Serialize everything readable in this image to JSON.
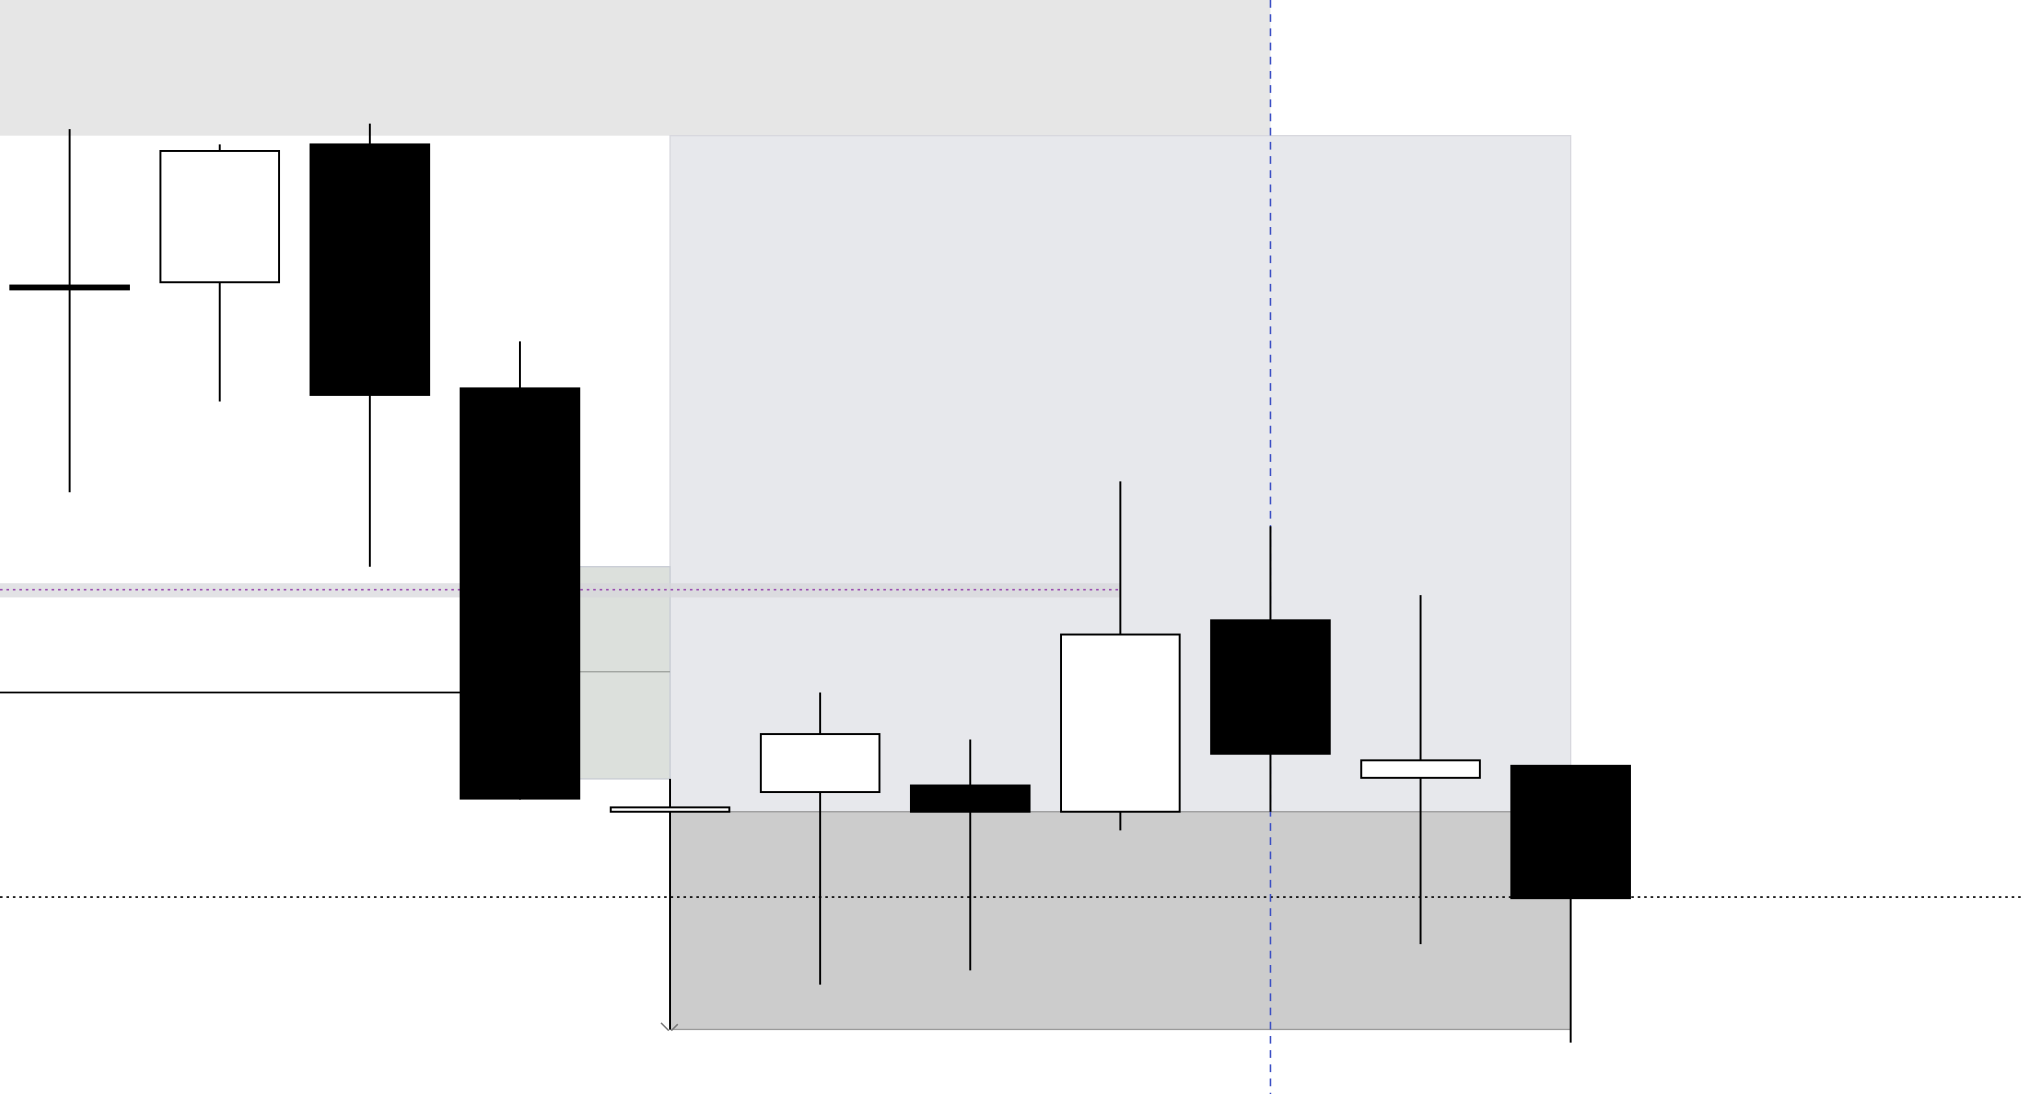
{
  "chart_data": {
    "type": "candlestick",
    "title": "",
    "xlabel": "",
    "ylabel": "",
    "ylim": [
      0,
      100
    ],
    "grid": false,
    "colors": {
      "bullish": "#ffffff",
      "bearish": "#000000",
      "outline": "#000000"
    },
    "candles": [
      {
        "open": 73.9,
        "high": 88.2,
        "low": 55.0,
        "close": 73.9
      },
      {
        "open": 74.2,
        "high": 86.8,
        "low": 63.3,
        "close": 86.2
      },
      {
        "open": 86.8,
        "high": 88.7,
        "low": 48.2,
        "close": 63.9
      },
      {
        "open": 64.5,
        "high": 68.8,
        "low": 26.9,
        "close": 27.0
      },
      {
        "open": 25.8,
        "high": 28.8,
        "low": 5.9,
        "close": 26.2
      },
      {
        "open": 27.6,
        "high": 36.7,
        "low": 10.0,
        "close": 32.9
      },
      {
        "open": 28.2,
        "high": 32.4,
        "low": 11.3,
        "close": 25.8
      },
      {
        "open": 25.8,
        "high": 56.0,
        "low": 24.1,
        "close": 42.0
      },
      {
        "open": 43.3,
        "high": 51.9,
        "low": 25.8,
        "close": 31.1
      },
      {
        "open": 28.9,
        "high": 45.6,
        "low": 13.7,
        "close": 30.5
      },
      {
        "open": 30.0,
        "high": 30.0,
        "low": 4.7,
        "close": 17.9
      }
    ],
    "levels": [
      {
        "price": 46.1,
        "style": "dotted",
        "color": "#9b4fb0"
      },
      {
        "price": 18.0,
        "style": "dotted",
        "color": "#000000"
      },
      {
        "price": 36.7,
        "style": "solid",
        "color": "#000000"
      }
    ],
    "crosshair_color": "#3b4fc4",
    "zone_colors": {
      "top_band": "#e6e6e6",
      "upper_zone": "#e7e8ec",
      "lower_zone": "#cccccc",
      "small_zone": "#dce0dc"
    }
  }
}
